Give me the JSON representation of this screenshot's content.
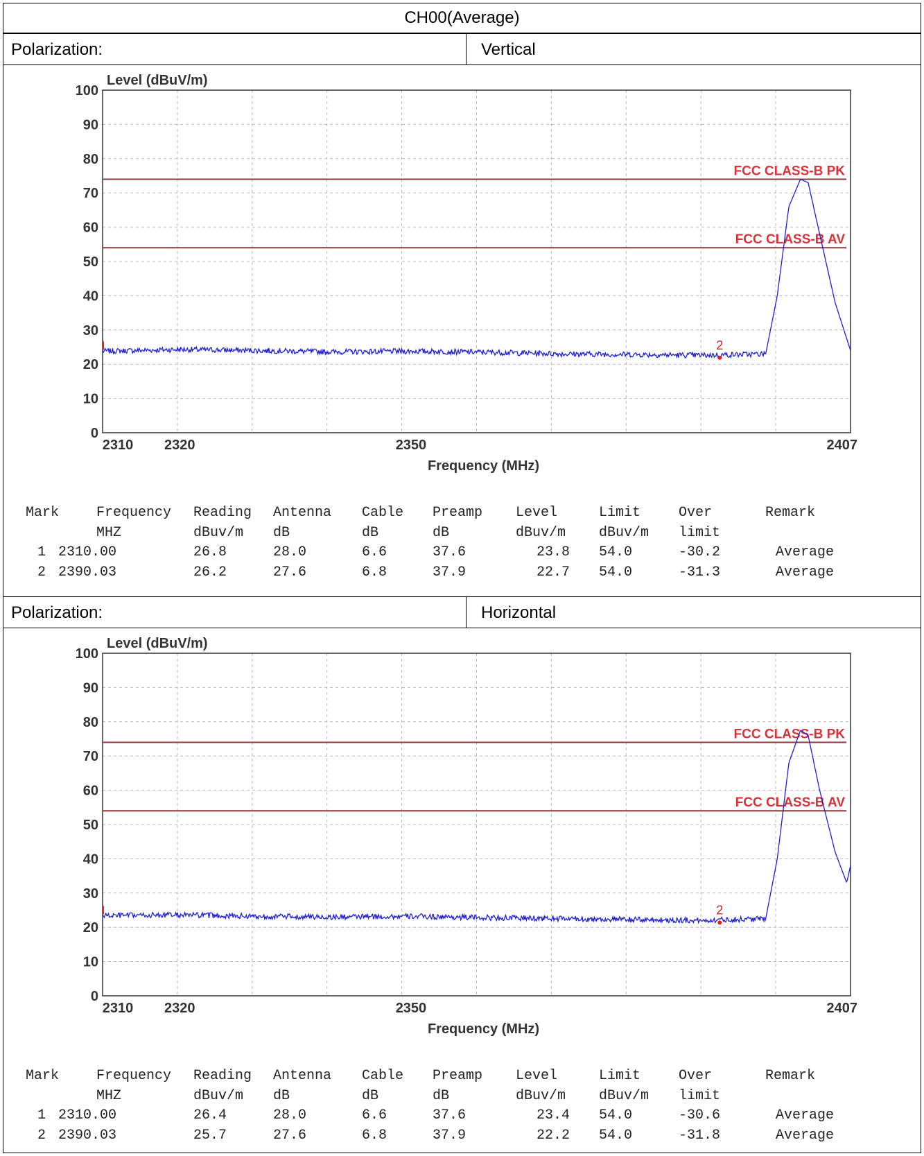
{
  "title": "CH00(Average)",
  "panels": [
    {
      "polarization_label": "Polarization:",
      "polarization": "Vertical",
      "table": {
        "header1": [
          "Mark",
          "Frequency",
          "Reading",
          "Antenna",
          "Cable",
          "Preamp",
          "Level",
          "Limit",
          "Over",
          "Remark"
        ],
        "header2": [
          "",
          "MHZ",
          "dBuv/m",
          "dB",
          "dB",
          "dB",
          "dBuv/m",
          "dBuv/m",
          "limit",
          ""
        ],
        "rows": [
          [
            "1",
            "2310.00",
            "26.8",
            "28.0",
            "6.6",
            "37.6",
            "23.8",
            "54.0",
            "-30.2",
            "Average"
          ],
          [
            "2",
            "2390.03",
            "26.2",
            "27.6",
            "6.8",
            "37.9",
            "22.7",
            "54.0",
            "-31.3",
            "Average"
          ]
        ]
      }
    },
    {
      "polarization_label": "Polarization:",
      "polarization": "Horizontal",
      "table": {
        "header1": [
          "Mark",
          "Frequency",
          "Reading",
          "Antenna",
          "Cable",
          "Preamp",
          "Level",
          "Limit",
          "Over",
          "Remark"
        ],
        "header2": [
          "",
          "MHZ",
          "dBuv/m",
          "dB",
          "dB",
          "dB",
          "dBuv/m",
          "dBuv/m",
          "limit",
          ""
        ],
        "rows": [
          [
            "1",
            "2310.00",
            "26.4",
            "28.0",
            "6.6",
            "37.6",
            "23.4",
            "54.0",
            "-30.6",
            "Average"
          ],
          [
            "2",
            "2390.03",
            "25.7",
            "27.6",
            "6.8",
            "37.9",
            "22.2",
            "54.0",
            "-31.8",
            "Average"
          ]
        ]
      }
    }
  ],
  "chart_data": [
    {
      "type": "line",
      "ylabel": "Level (dBuV/m)",
      "xlabel": "Frequency (MHz)",
      "xlim": [
        2310,
        2407
      ],
      "ylim": [
        0,
        100
      ],
      "xticks": [
        2310,
        2320,
        2350,
        2407
      ],
      "yticks": [
        0,
        10,
        20,
        30,
        40,
        50,
        60,
        70,
        80,
        90,
        100
      ],
      "grid": true,
      "limit_lines": [
        {
          "name": "FCC CLASS-B PK",
          "value": 74,
          "color": "#8b3a3a"
        },
        {
          "name": "FCC CLASS-B AV",
          "value": 54,
          "color": "#8b3a3a"
        }
      ],
      "series": [
        {
          "color": "#1f1fcc",
          "x": [
            2310,
            2320,
            2330,
            2340,
            2350,
            2360,
            2370,
            2380,
            2388,
            2390,
            2396,
            2397.5,
            2399,
            2400.5,
            2401.5,
            2403,
            2405,
            2407
          ],
          "y": [
            23.8,
            24.3,
            24.0,
            23.6,
            23.8,
            23.5,
            23.0,
            22.8,
            22.6,
            22.7,
            23.0,
            40.0,
            66.0,
            74.0,
            73.0,
            58.0,
            38.0,
            24.0
          ]
        }
      ],
      "markers": [
        {
          "label": "1",
          "x": 2310.0,
          "y": 23.8
        },
        {
          "label": "2",
          "x": 2390.03,
          "y": 22.7
        }
      ],
      "marker_color": "#e02020"
    },
    {
      "type": "line",
      "ylabel": "Level (dBuV/m)",
      "xlabel": "Frequency (MHz)",
      "xlim": [
        2310,
        2407
      ],
      "ylim": [
        0,
        100
      ],
      "xticks": [
        2310,
        2320,
        2350,
        2407
      ],
      "yticks": [
        0,
        10,
        20,
        30,
        40,
        50,
        60,
        70,
        80,
        90,
        100
      ],
      "grid": true,
      "limit_lines": [
        {
          "name": "FCC CLASS-B PK",
          "value": 74,
          "color": "#8b3a3a"
        },
        {
          "name": "FCC CLASS-B AV",
          "value": 54,
          "color": "#8b3a3a"
        }
      ],
      "series": [
        {
          "color": "#1f1fcc",
          "x": [
            2310,
            2320,
            2330,
            2340,
            2350,
            2360,
            2370,
            2380,
            2388,
            2390,
            2396,
            2397.5,
            2399,
            2400.5,
            2401.5,
            2403,
            2405,
            2406.5,
            2407
          ],
          "y": [
            23.4,
            23.6,
            23.2,
            23.0,
            23.2,
            22.8,
            22.5,
            22.2,
            22.0,
            22.2,
            22.5,
            40.0,
            68.0,
            77.5,
            76.0,
            60.0,
            42.0,
            33.0,
            38.0
          ]
        }
      ],
      "markers": [
        {
          "label": "1",
          "x": 2310.0,
          "y": 23.4
        },
        {
          "label": "2",
          "x": 2390.03,
          "y": 22.2
        }
      ],
      "marker_color": "#e02020"
    }
  ]
}
